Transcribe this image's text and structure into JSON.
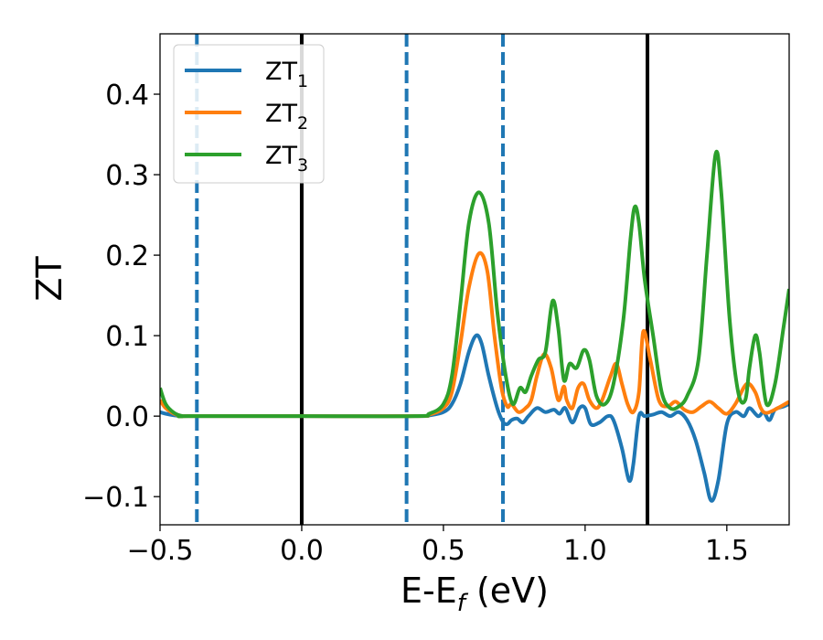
{
  "chart_data": {
    "type": "line",
    "title": "",
    "xlabel": {
      "base": "E-E",
      "sub": "f",
      "rest": " (eV)"
    },
    "ylabel": "ZT",
    "xlim": [
      -0.5,
      1.72
    ],
    "ylim": [
      -0.135,
      0.475
    ],
    "x_ticks": [
      {
        "value": -0.5,
        "label": "−0.5"
      },
      {
        "value": 0.0,
        "label": "0.0"
      },
      {
        "value": 0.5,
        "label": "0.5"
      },
      {
        "value": 1.0,
        "label": "1.0"
      },
      {
        "value": 1.5,
        "label": "1.5"
      }
    ],
    "y_ticks": [
      {
        "value": -0.1,
        "label": "−0.1"
      },
      {
        "value": 0.0,
        "label": "0.0"
      },
      {
        "value": 0.1,
        "label": "0.1"
      },
      {
        "value": 0.2,
        "label": "0.2"
      },
      {
        "value": 0.3,
        "label": "0.3"
      },
      {
        "value": 0.4,
        "label": "0.4"
      }
    ],
    "grid": false,
    "legend": "top-left",
    "vertical_lines": [
      {
        "x": -0.37,
        "style": "dashed",
        "color": "#1f77b4"
      },
      {
        "x": 0.0,
        "style": "solid",
        "color": "#000000"
      },
      {
        "x": 0.37,
        "style": "dashed",
        "color": "#1f77b4"
      },
      {
        "x": 0.71,
        "style": "dashed",
        "color": "#1f77b4"
      },
      {
        "x": 1.22,
        "style": "solid",
        "color": "#000000"
      }
    ],
    "series": [
      {
        "name": {
          "base": "ZT",
          "sub": "1"
        },
        "color": "#1f77b4",
        "points": [
          [
            -0.5,
            0.005
          ],
          [
            -0.48,
            0.003
          ],
          [
            -0.45,
            0.001
          ],
          [
            -0.42,
            0.0
          ],
          [
            -0.4,
            0.0
          ],
          [
            0.0,
            0.0
          ],
          [
            0.4,
            0.0
          ],
          [
            0.45,
            0.001
          ],
          [
            0.5,
            0.005
          ],
          [
            0.53,
            0.015
          ],
          [
            0.56,
            0.04
          ],
          [
            0.59,
            0.08
          ],
          [
            0.615,
            0.1
          ],
          [
            0.635,
            0.09
          ],
          [
            0.66,
            0.05
          ],
          [
            0.69,
            0.01
          ],
          [
            0.71,
            -0.007
          ],
          [
            0.725,
            -0.01
          ],
          [
            0.74,
            -0.005
          ],
          [
            0.76,
            -0.003
          ],
          [
            0.78,
            -0.008
          ],
          [
            0.8,
            0.0
          ],
          [
            0.83,
            0.01
          ],
          [
            0.86,
            0.005
          ],
          [
            0.89,
            0.008
          ],
          [
            0.91,
            0.003
          ],
          [
            0.93,
            0.01
          ],
          [
            0.955,
            -0.008
          ],
          [
            0.98,
            0.01
          ],
          [
            1.0,
            0.01
          ],
          [
            1.02,
            -0.01
          ],
          [
            1.05,
            -0.008
          ],
          [
            1.08,
            0.0
          ],
          [
            1.1,
            -0.005
          ],
          [
            1.13,
            -0.04
          ],
          [
            1.155,
            -0.08
          ],
          [
            1.17,
            -0.06
          ],
          [
            1.19,
            0.0
          ],
          [
            1.21,
            0.0
          ],
          [
            1.24,
            0.002
          ],
          [
            1.27,
            0.005
          ],
          [
            1.3,
            0.0
          ],
          [
            1.33,
            0.005
          ],
          [
            1.36,
            -0.005
          ],
          [
            1.39,
            -0.03
          ],
          [
            1.42,
            -0.07
          ],
          [
            1.445,
            -0.105
          ],
          [
            1.47,
            -0.08
          ],
          [
            1.5,
            -0.01
          ],
          [
            1.53,
            0.005
          ],
          [
            1.56,
            0.0
          ],
          [
            1.58,
            0.01
          ],
          [
            1.61,
            0.0
          ],
          [
            1.63,
            0.005
          ],
          [
            1.65,
            -0.005
          ],
          [
            1.67,
            0.008
          ],
          [
            1.7,
            0.012
          ],
          [
            1.72,
            0.015
          ]
        ]
      },
      {
        "name": {
          "base": "ZT",
          "sub": "2"
        },
        "color": "#ff7f0e",
        "points": [
          [
            -0.5,
            0.02
          ],
          [
            -0.48,
            0.01
          ],
          [
            -0.45,
            0.003
          ],
          [
            -0.42,
            0.0
          ],
          [
            -0.4,
            0.0
          ],
          [
            0.0,
            0.0
          ],
          [
            0.4,
            0.0
          ],
          [
            0.45,
            0.002
          ],
          [
            0.5,
            0.01
          ],
          [
            0.53,
            0.03
          ],
          [
            0.56,
            0.09
          ],
          [
            0.59,
            0.16
          ],
          [
            0.625,
            0.202
          ],
          [
            0.655,
            0.18
          ],
          [
            0.68,
            0.1
          ],
          [
            0.705,
            0.035
          ],
          [
            0.725,
            0.012
          ],
          [
            0.74,
            0.015
          ],
          [
            0.765,
            0.005
          ],
          [
            0.79,
            0.01
          ],
          [
            0.81,
            0.02
          ],
          [
            0.83,
            0.05
          ],
          [
            0.855,
            0.077
          ],
          [
            0.88,
            0.06
          ],
          [
            0.905,
            0.02
          ],
          [
            0.925,
            0.037
          ],
          [
            0.935,
            0.02
          ],
          [
            0.955,
            0.01
          ],
          [
            0.975,
            0.035
          ],
          [
            0.995,
            0.04
          ],
          [
            1.015,
            0.02
          ],
          [
            1.04,
            0.01
          ],
          [
            1.06,
            0.02
          ],
          [
            1.09,
            0.05
          ],
          [
            1.11,
            0.065
          ],
          [
            1.13,
            0.04
          ],
          [
            1.15,
            0.015
          ],
          [
            1.17,
            0.005
          ],
          [
            1.19,
            0.03
          ],
          [
            1.205,
            0.105
          ],
          [
            1.23,
            0.07
          ],
          [
            1.26,
            0.02
          ],
          [
            1.29,
            0.012
          ],
          [
            1.32,
            0.018
          ],
          [
            1.35,
            0.008
          ],
          [
            1.38,
            0.005
          ],
          [
            1.41,
            0.012
          ],
          [
            1.44,
            0.018
          ],
          [
            1.47,
            0.01
          ],
          [
            1.5,
            0.003
          ],
          [
            1.53,
            0.015
          ],
          [
            1.57,
            0.04
          ],
          [
            1.6,
            0.03
          ],
          [
            1.62,
            0.01
          ],
          [
            1.64,
            0.004
          ],
          [
            1.68,
            0.01
          ],
          [
            1.72,
            0.018
          ]
        ]
      },
      {
        "name": {
          "base": "ZT",
          "sub": "3"
        },
        "color": "#2ca02c",
        "points": [
          [
            -0.5,
            0.035
          ],
          [
            -0.48,
            0.015
          ],
          [
            -0.45,
            0.004
          ],
          [
            -0.42,
            0.0
          ],
          [
            -0.4,
            0.0
          ],
          [
            0.0,
            0.0
          ],
          [
            0.4,
            0.0
          ],
          [
            0.45,
            0.003
          ],
          [
            0.5,
            0.015
          ],
          [
            0.53,
            0.05
          ],
          [
            0.56,
            0.14
          ],
          [
            0.59,
            0.24
          ],
          [
            0.625,
            0.278
          ],
          [
            0.66,
            0.24
          ],
          [
            0.69,
            0.13
          ],
          [
            0.72,
            0.05
          ],
          [
            0.745,
            0.015
          ],
          [
            0.77,
            0.035
          ],
          [
            0.79,
            0.03
          ],
          [
            0.81,
            0.05
          ],
          [
            0.835,
            0.07
          ],
          [
            0.86,
            0.08
          ],
          [
            0.885,
            0.143
          ],
          [
            0.905,
            0.11
          ],
          [
            0.925,
            0.045
          ],
          [
            0.945,
            0.065
          ],
          [
            0.97,
            0.06
          ],
          [
            0.995,
            0.082
          ],
          [
            1.015,
            0.07
          ],
          [
            1.04,
            0.025
          ],
          [
            1.07,
            0.015
          ],
          [
            1.1,
            0.04
          ],
          [
            1.135,
            0.12
          ],
          [
            1.16,
            0.22
          ],
          [
            1.175,
            0.26
          ],
          [
            1.19,
            0.24
          ],
          [
            1.21,
            0.17
          ],
          [
            1.24,
            0.1
          ],
          [
            1.27,
            0.03
          ],
          [
            1.3,
            0.01
          ],
          [
            1.33,
            0.012
          ],
          [
            1.36,
            0.025
          ],
          [
            1.4,
            0.07
          ],
          [
            1.43,
            0.2
          ],
          [
            1.46,
            0.325
          ],
          [
            1.48,
            0.28
          ],
          [
            1.51,
            0.12
          ],
          [
            1.54,
            0.03
          ],
          [
            1.565,
            0.02
          ],
          [
            1.58,
            0.06
          ],
          [
            1.6,
            0.1
          ],
          [
            1.615,
            0.08
          ],
          [
            1.64,
            0.015
          ],
          [
            1.67,
            0.04
          ],
          [
            1.7,
            0.11
          ],
          [
            1.72,
            0.158
          ]
        ]
      }
    ]
  }
}
